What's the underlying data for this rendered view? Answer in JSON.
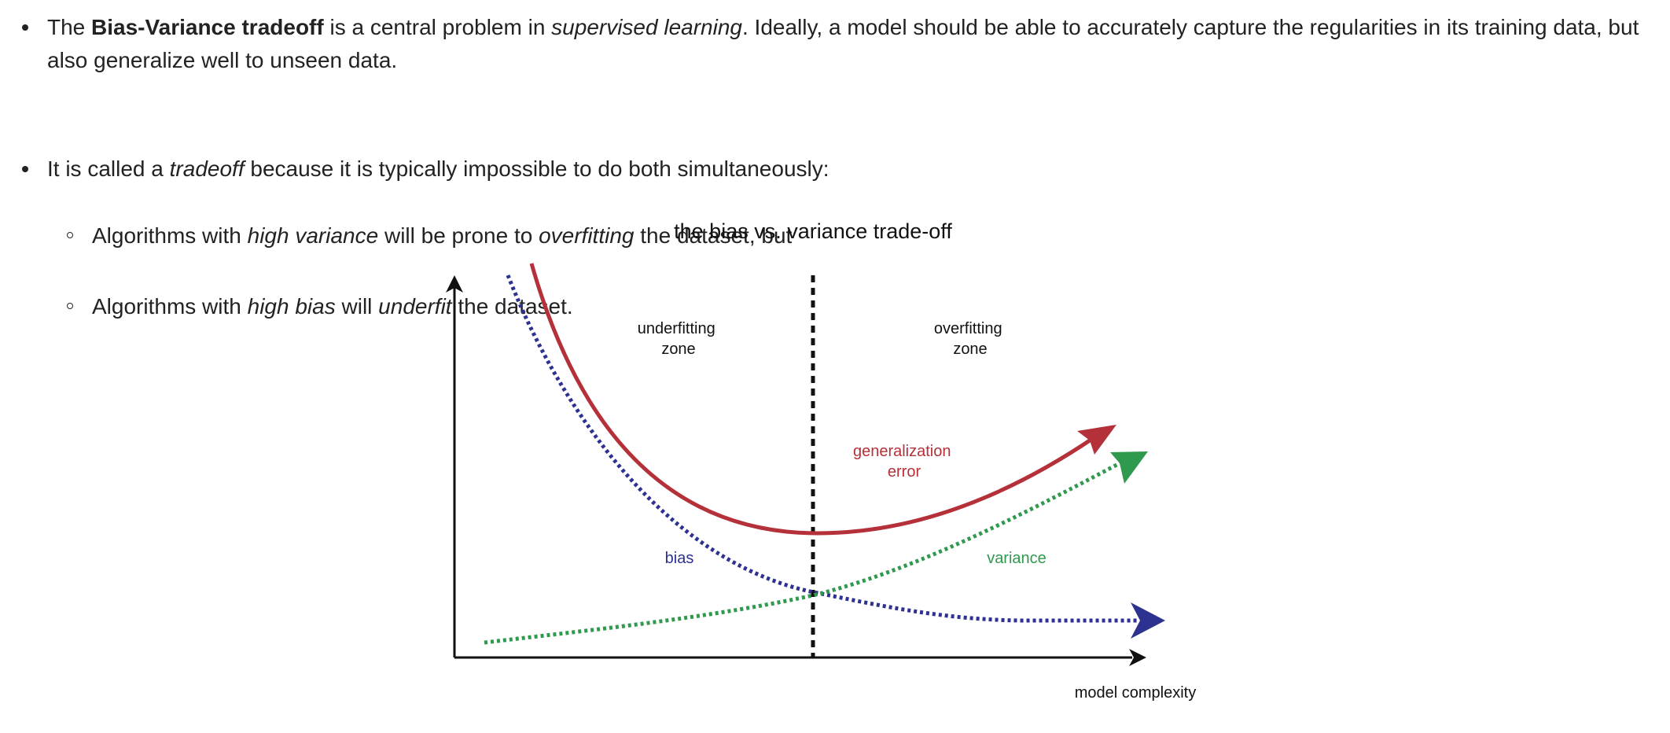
{
  "bullets": {
    "b1": {
      "pre": "The ",
      "bold": "Bias-Variance tradeoff",
      "mid": " is a central problem in ",
      "italic": "supervised learning",
      "post": ". Ideally, a model should be able to accurately capture the regularities in its training data, but",
      "line2": "also generalize well to unseen data."
    },
    "b2": {
      "pre": "It is called a ",
      "italic": "tradeoff",
      "post": " because it is typically impossible to do both simultaneously:"
    },
    "sub1": {
      "pre": "Algorithms with ",
      "italic1": "high variance",
      "mid": " will be prone to ",
      "italic2": "overfitting",
      "post": " the dataset, but"
    },
    "sub2": {
      "pre": "Algorithms with ",
      "italic1": "high bias",
      "mid": " will ",
      "italic2": "underfit",
      "post": " the dataset."
    }
  },
  "figure": {
    "title": "the bias vs. variance trade-off",
    "x_axis_label": "model complexity",
    "zones": {
      "underfitting": [
        "underfitting",
        "zone"
      ],
      "overfitting": [
        "overfitting",
        "zone"
      ]
    },
    "labels": {
      "generalization": [
        "generalization",
        "error"
      ],
      "bias": "bias",
      "variance": "variance"
    },
    "colors": {
      "generalization_error": "#b5313a",
      "bias": "#2d318f",
      "variance": "#2f9a4e",
      "axis": "#111111"
    }
  }
}
